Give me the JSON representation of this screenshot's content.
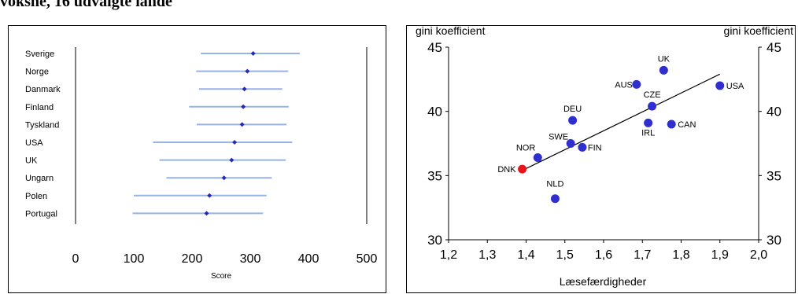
{
  "heading": "voksne, 16 udvalgte lande",
  "chart_data": [
    {
      "type": "scatter",
      "categories": [
        "Sverige",
        "Norge",
        "Danmark",
        "Finland",
        "Tyskland",
        "USA",
        "UK",
        "Ungarn",
        "Polen",
        "Portugal"
      ],
      "points": [
        305,
        295,
        290,
        288,
        286,
        273,
        268,
        255,
        230,
        225
      ],
      "ranges": [
        [
          215,
          385
        ],
        [
          207,
          365
        ],
        [
          212,
          355
        ],
        [
          195,
          366
        ],
        [
          208,
          362
        ],
        [
          133,
          372
        ],
        [
          144,
          361
        ],
        [
          156,
          337
        ],
        [
          100,
          328
        ],
        [
          98,
          322
        ]
      ],
      "xlabel": "Score",
      "xlim": [
        0,
        500
      ],
      "xticks": [
        "0",
        "100",
        "200",
        "300",
        "400",
        "500"
      ],
      "colors": {
        "range": "#99b2e8",
        "point": "#2828b8"
      }
    },
    {
      "type": "scatter",
      "xlabel": "Læsefærdigheder",
      "ylabel_left": "gini koefficient",
      "ylabel_right": "gini koefficient",
      "xlim": [
        1.2,
        2.0
      ],
      "ylim": [
        30,
        45
      ],
      "xticks": [
        "1,2",
        "1,3",
        "1,4",
        "1,5",
        "1,6",
        "1,7",
        "1,8",
        "1,9",
        "2,0"
      ],
      "yticks": [
        "30",
        "35",
        "40",
        "45"
      ],
      "points": [
        {
          "label": "UK",
          "x": 1.755,
          "y": 43.2
        },
        {
          "label": "AUS",
          "x": 1.685,
          "y": 42.1
        },
        {
          "label": "USA",
          "x": 1.9,
          "y": 42.0
        },
        {
          "label": "CZE",
          "x": 1.725,
          "y": 40.4
        },
        {
          "label": "DEU",
          "x": 1.52,
          "y": 39.3
        },
        {
          "label": "IRL",
          "x": 1.715,
          "y": 39.1
        },
        {
          "label": "CAN",
          "x": 1.775,
          "y": 39.0
        },
        {
          "label": "SWE",
          "x": 1.515,
          "y": 37.5
        },
        {
          "label": "FIN",
          "x": 1.545,
          "y": 37.2
        },
        {
          "label": "NOR",
          "x": 1.43,
          "y": 36.4
        },
        {
          "label": "DNK",
          "x": 1.39,
          "y": 35.5
        },
        {
          "label": "NLD",
          "x": 1.475,
          "y": 33.2
        }
      ],
      "highlight": "DNK",
      "trendline": {
        "x": [
          1.39,
          1.9
        ],
        "y": [
          35.4,
          42.9
        ]
      },
      "colors": {
        "point": "#2f2fcf",
        "highlight": "#e8141c",
        "line": "#000000"
      }
    }
  ]
}
